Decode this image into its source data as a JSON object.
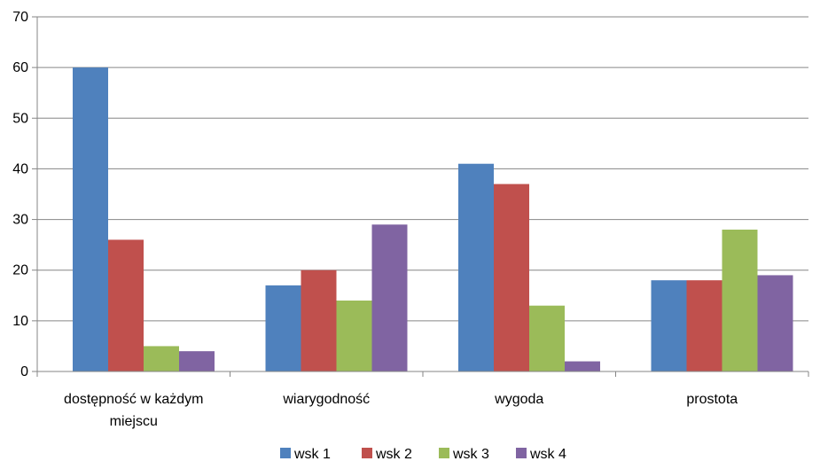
{
  "chart_data": {
    "type": "bar",
    "title": "",
    "xlabel": "",
    "ylabel": "",
    "categories": [
      [
        "dostępność w każdym",
        "miejscu"
      ],
      [
        "wiarygodność"
      ],
      [
        "wygoda"
      ],
      [
        "prostota"
      ]
    ],
    "series": [
      {
        "name": "wsk 1",
        "color": "#4F81BD",
        "values": [
          60,
          17,
          41,
          18
        ]
      },
      {
        "name": "wsk 2",
        "color": "#C0504D",
        "values": [
          26,
          20,
          37,
          18
        ]
      },
      {
        "name": "wsk 3",
        "color": "#9BBB59",
        "values": [
          5,
          14,
          13,
          28
        ]
      },
      {
        "name": "wsk 4",
        "color": "#8064A2",
        "values": [
          4,
          29,
          2,
          19
        ]
      }
    ],
    "ylim": [
      0,
      70
    ],
    "yticks": [
      0,
      10,
      20,
      30,
      40,
      50,
      60,
      70
    ],
    "grid": true,
    "legend": "bottom",
    "gridline_color": "#868686"
  }
}
